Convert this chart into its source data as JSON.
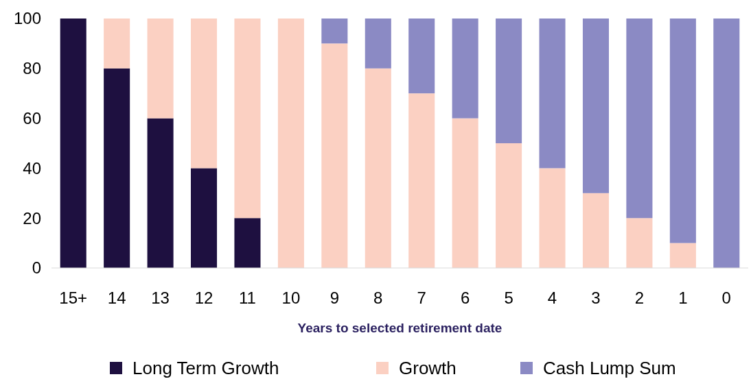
{
  "chart_data": {
    "type": "bar",
    "stacked": true,
    "xlabel": "Years to selected retirement date",
    "categories": [
      "15+",
      "14",
      "13",
      "12",
      "11",
      "10",
      "9",
      "8",
      "7",
      "6",
      "5",
      "4",
      "3",
      "2",
      "1",
      "0"
    ],
    "series": [
      {
        "name": "Long Term Growth",
        "color": "#1e1040",
        "values": [
          100,
          80,
          60,
          40,
          20,
          0,
          0,
          0,
          0,
          0,
          0,
          0,
          0,
          0,
          0,
          0
        ]
      },
      {
        "name": "Growth",
        "color": "#fbd0c2",
        "values": [
          0,
          20,
          40,
          60,
          80,
          100,
          90,
          80,
          70,
          60,
          50,
          40,
          30,
          20,
          10,
          0
        ]
      },
      {
        "name": "Cash Lump Sum",
        "color": "#8b8ac4",
        "values": [
          0,
          0,
          0,
          0,
          0,
          0,
          10,
          20,
          30,
          40,
          50,
          60,
          70,
          80,
          90,
          100
        ]
      }
    ],
    "ylim": [
      0,
      100
    ],
    "yticks": [
      0,
      20,
      40,
      60,
      80,
      100
    ],
    "grid": false,
    "legend": "bottom"
  }
}
